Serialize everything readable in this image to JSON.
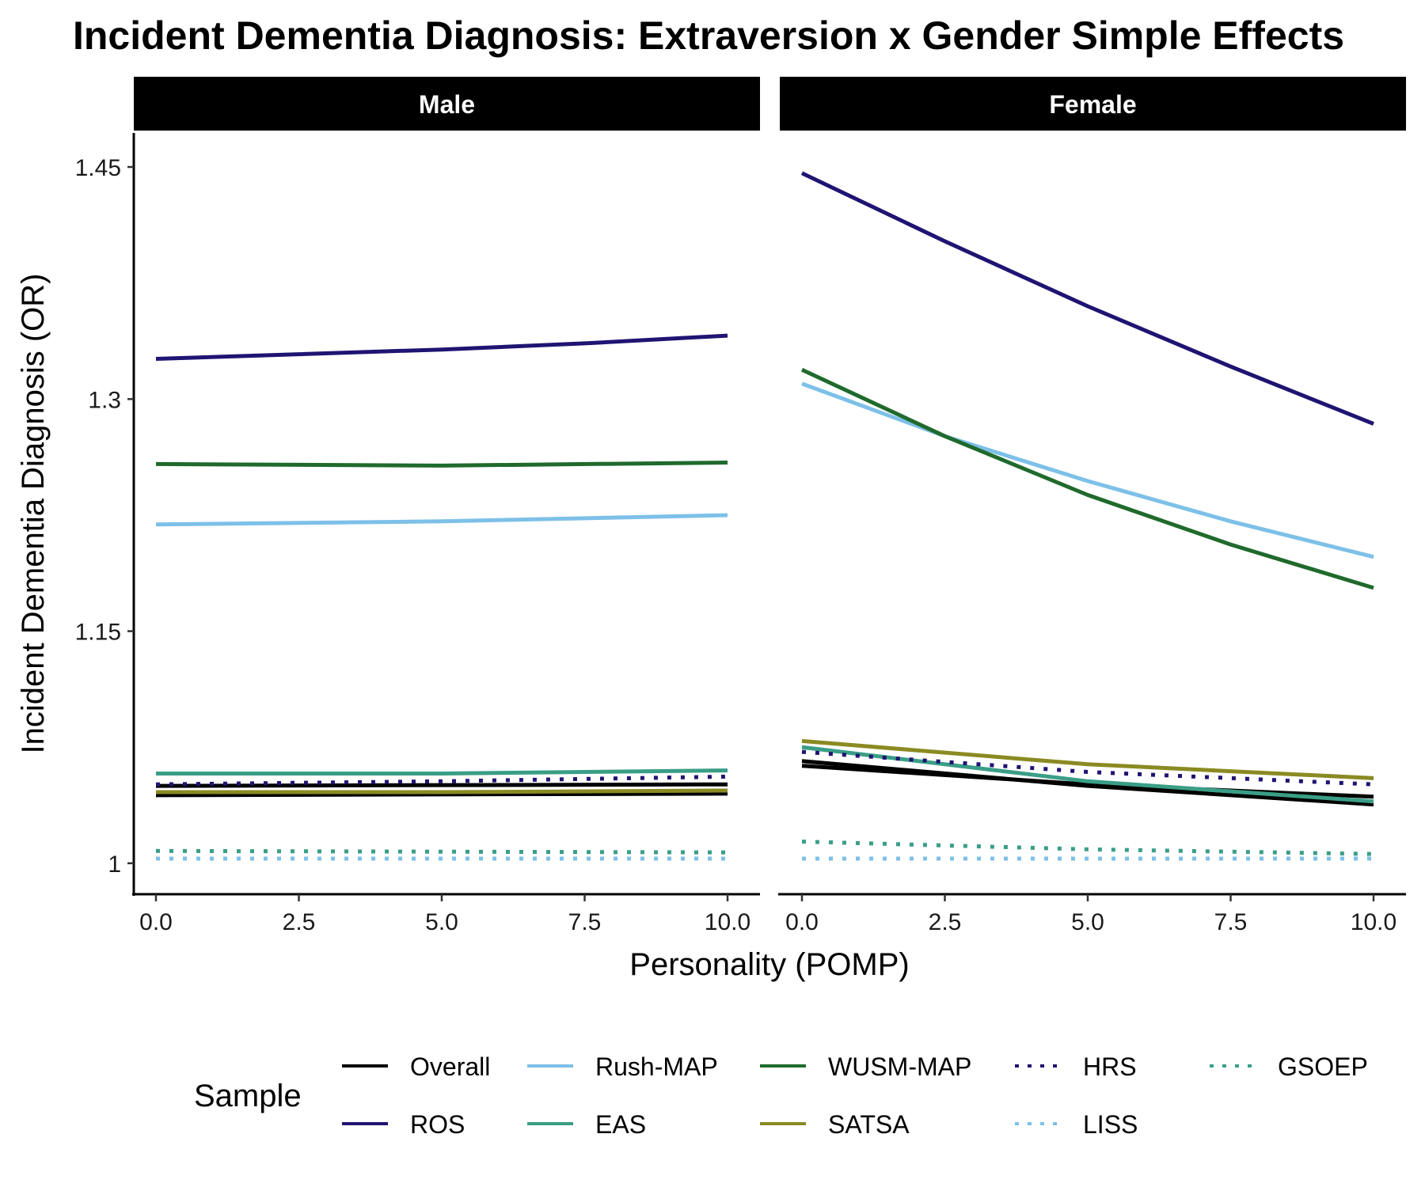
{
  "chart_data": {
    "type": "line",
    "title": "Incident Dementia Diagnosis: Extraversion x Gender Simple Effects",
    "xlabel": "Personality (POMP)",
    "ylabel": "Incident Dementia Diagnosis (OR)",
    "xlim": [
      0,
      10
    ],
    "ylim": [
      0.98,
      1.472
    ],
    "x_ticks": [
      0,
      2.5,
      5,
      7.5,
      10
    ],
    "x_tick_labels": [
      "0.0",
      "2.5",
      "5.0",
      "7.5",
      "10.0"
    ],
    "y_ticks": [
      1,
      1.15,
      1.3,
      1.45
    ],
    "y_tick_labels": [
      "1",
      "1.15",
      "1.3",
      "1.45"
    ],
    "grid": false,
    "legend_title": "Sample",
    "legend_position": "bottom",
    "panels": [
      {
        "label": "Male",
        "series": [
          {
            "name": "Overall",
            "color": "#000000",
            "dash": "solid",
            "x": [
              0,
              10
            ],
            "y": [
              1.05,
              1.051
            ]
          },
          {
            "name": "Overall",
            "color": "#000000",
            "dash": "solid",
            "x": [
              0,
              10
            ],
            "y": [
              1.044,
              1.045
            ]
          },
          {
            "name": "ROS",
            "color": "#1f1472",
            "dash": "solid",
            "x": [
              0,
              2.5,
              5,
              7.5,
              10
            ],
            "y": [
              1.326,
              1.329,
              1.332,
              1.336,
              1.341
            ]
          },
          {
            "name": "Rush-MAP",
            "color": "#7dc0e8",
            "dash": "solid",
            "x": [
              0,
              5,
              10
            ],
            "y": [
              1.219,
              1.221,
              1.225
            ]
          },
          {
            "name": "EAS",
            "color": "#3a9e87",
            "dash": "solid",
            "x": [
              0,
              5,
              10
            ],
            "y": [
              1.058,
              1.058,
              1.06
            ]
          },
          {
            "name": "WUSM-MAP",
            "color": "#1f6a2c",
            "dash": "solid",
            "x": [
              0,
              5,
              10
            ],
            "y": [
              1.258,
              1.257,
              1.259
            ]
          },
          {
            "name": "SATSA",
            "color": "#8a8a22",
            "dash": "solid",
            "x": [
              0,
              5,
              10
            ],
            "y": [
              1.046,
              1.046,
              1.047
            ]
          },
          {
            "name": "HRS",
            "color": "#1f1472",
            "dash": "dotted",
            "x": [
              0,
              5,
              10
            ],
            "y": [
              1.051,
              1.053,
              1.056
            ]
          },
          {
            "name": "LISS",
            "color": "#7dc0e8",
            "dash": "dotted",
            "x": [
              0,
              10
            ],
            "y": [
              1.003,
              1.003
            ]
          },
          {
            "name": "GSOEP",
            "color": "#3a9e87",
            "dash": "dotted",
            "x": [
              0,
              10
            ],
            "y": [
              1.008,
              1.007
            ]
          }
        ]
      },
      {
        "label": "Female",
        "series": [
          {
            "name": "Overall",
            "color": "#000000",
            "dash": "solid",
            "x": [
              0,
              5,
              10
            ],
            "y": [
              1.066,
              1.05,
              1.038
            ]
          },
          {
            "name": "Overall",
            "color": "#000000",
            "dash": "solid",
            "x": [
              0,
              5,
              10
            ],
            "y": [
              1.063,
              1.051,
              1.043
            ]
          },
          {
            "name": "ROS",
            "color": "#1f1472",
            "dash": "solid",
            "x": [
              0,
              2.5,
              5,
              7.5,
              10
            ],
            "y": [
              1.446,
              1.402,
              1.36,
              1.321,
              1.284
            ]
          },
          {
            "name": "Rush-MAP",
            "color": "#7dc0e8",
            "dash": "solid",
            "x": [
              0,
              2.5,
              5,
              7.5,
              10
            ],
            "y": [
              1.31,
              1.276,
              1.247,
              1.221,
              1.198
            ]
          },
          {
            "name": "EAS",
            "color": "#3a9e87",
            "dash": "solid",
            "x": [
              0,
              5,
              10
            ],
            "y": [
              1.075,
              1.053,
              1.04
            ]
          },
          {
            "name": "WUSM-MAP",
            "color": "#1f6a2c",
            "dash": "solid",
            "x": [
              0,
              2.5,
              5,
              7.5,
              10
            ],
            "y": [
              1.319,
              1.276,
              1.238,
              1.206,
              1.178
            ]
          },
          {
            "name": "SATSA",
            "color": "#8a8a22",
            "dash": "solid",
            "x": [
              0,
              5,
              10
            ],
            "y": [
              1.079,
              1.064,
              1.055
            ]
          },
          {
            "name": "HRS",
            "color": "#1f1472",
            "dash": "dotted",
            "x": [
              0,
              5,
              10
            ],
            "y": [
              1.072,
              1.059,
              1.051
            ]
          },
          {
            "name": "LISS",
            "color": "#7dc0e8",
            "dash": "dotted",
            "x": [
              0,
              10
            ],
            "y": [
              1.003,
              1.003
            ]
          },
          {
            "name": "GSOEP",
            "color": "#3a9e87",
            "dash": "dotted",
            "x": [
              0,
              5,
              10
            ],
            "y": [
              1.014,
              1.009,
              1.006
            ]
          }
        ]
      }
    ],
    "legend": [
      {
        "name": "Overall",
        "color": "#000000",
        "dash": "solid"
      },
      {
        "name": "Rush-MAP",
        "color": "#7dc0e8",
        "dash": "solid"
      },
      {
        "name": "WUSM-MAP",
        "color": "#1f6a2c",
        "dash": "solid"
      },
      {
        "name": "HRS",
        "color": "#1f1472",
        "dash": "dotted"
      },
      {
        "name": "GSOEP",
        "color": "#3a9e87",
        "dash": "dotted"
      },
      {
        "name": "ROS",
        "color": "#1f1472",
        "dash": "solid"
      },
      {
        "name": "EAS",
        "color": "#3a9e87",
        "dash": "solid"
      },
      {
        "name": "SATSA",
        "color": "#8a8a22",
        "dash": "solid"
      },
      {
        "name": "LISS",
        "color": "#7dc0e8",
        "dash": "dotted"
      }
    ]
  }
}
